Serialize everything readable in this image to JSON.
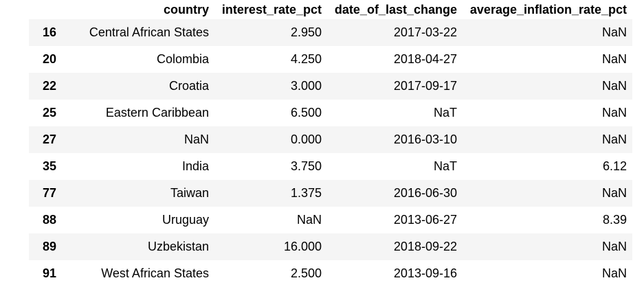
{
  "table": {
    "columns": [
      "",
      "country",
      "interest_rate_pct",
      "date_of_last_change",
      "average_inflation_rate_pct"
    ],
    "rows": [
      {
        "index": "16",
        "country": "Central African States",
        "interest_rate_pct": "2.950",
        "date_of_last_change": "2017-03-22",
        "average_inflation_rate_pct": "NaN"
      },
      {
        "index": "20",
        "country": "Colombia",
        "interest_rate_pct": "4.250",
        "date_of_last_change": "2018-04-27",
        "average_inflation_rate_pct": "NaN"
      },
      {
        "index": "22",
        "country": "Croatia",
        "interest_rate_pct": "3.000",
        "date_of_last_change": "2017-09-17",
        "average_inflation_rate_pct": "NaN"
      },
      {
        "index": "25",
        "country": "Eastern Caribbean",
        "interest_rate_pct": "6.500",
        "date_of_last_change": "NaT",
        "average_inflation_rate_pct": "NaN"
      },
      {
        "index": "27",
        "country": "NaN",
        "interest_rate_pct": "0.000",
        "date_of_last_change": "2016-03-10",
        "average_inflation_rate_pct": "NaN"
      },
      {
        "index": "35",
        "country": "India",
        "interest_rate_pct": "3.750",
        "date_of_last_change": "NaT",
        "average_inflation_rate_pct": "6.12"
      },
      {
        "index": "77",
        "country": "Taiwan",
        "interest_rate_pct": "1.375",
        "date_of_last_change": "2016-06-30",
        "average_inflation_rate_pct": "NaN"
      },
      {
        "index": "88",
        "country": "Uruguay",
        "interest_rate_pct": "NaN",
        "date_of_last_change": "2013-06-27",
        "average_inflation_rate_pct": "8.39"
      },
      {
        "index": "89",
        "country": "Uzbekistan",
        "interest_rate_pct": "16.000",
        "date_of_last_change": "2018-09-22",
        "average_inflation_rate_pct": "NaN"
      },
      {
        "index": "91",
        "country": "West African States",
        "interest_rate_pct": "2.500",
        "date_of_last_change": "2013-09-16",
        "average_inflation_rate_pct": "NaN"
      }
    ]
  },
  "colors": {
    "stripe": "#f5f5f5",
    "background": "#ffffff",
    "text": "#000000"
  }
}
